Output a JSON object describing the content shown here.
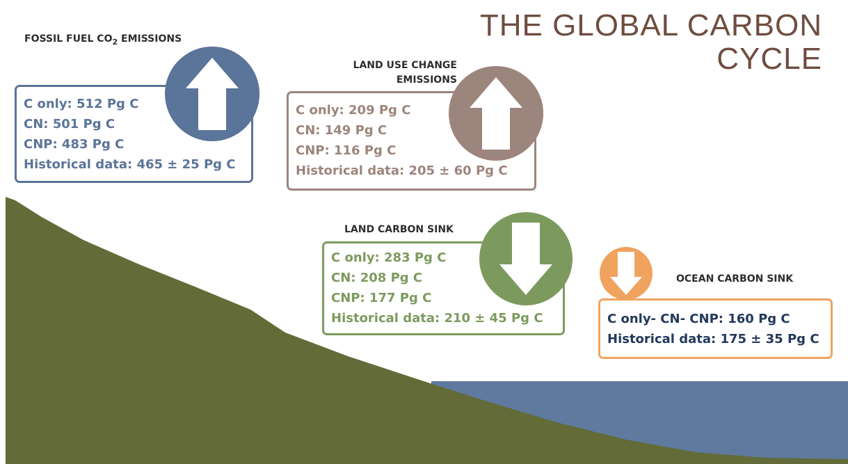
{
  "title": {
    "lines": [
      "THE GLOBAL CARBON",
      "CYCLE"
    ]
  },
  "fossil_fuel": {
    "label": [
      "FOSSIL FUEL CO",
      "2",
      "EMISSIONS"
    ],
    "lines": [
      "C only: 512 Pg C",
      "CN: 501 Pg C",
      "CNP: 483 Pg C",
      "Historical data: 465 ± 25 Pg C"
    ]
  },
  "land_use_change": {
    "label": [
      "LAND USE CHANGE",
      "EMISSIONS"
    ],
    "lines": [
      "C only: 209 Pg C",
      "CN: 149 Pg C",
      "CNP: 116 Pg C",
      "Historical data: 205 ± 60 Pg C"
    ]
  },
  "land_carbon_sink": {
    "label": "LAND CARBON SINK",
    "lines": [
      "C only: 283 Pg C",
      "CN: 208 Pg C",
      "CNP: 177 Pg C",
      "Historical data: 210 ± 45 Pg C"
    ]
  },
  "ocean_carbon_sink": {
    "label": "OCEAN CARBON SINK",
    "lines": [
      "C only- CN- CNP: 160 Pg C",
      "Historical data: 175 ± 35 Pg C"
    ]
  }
}
